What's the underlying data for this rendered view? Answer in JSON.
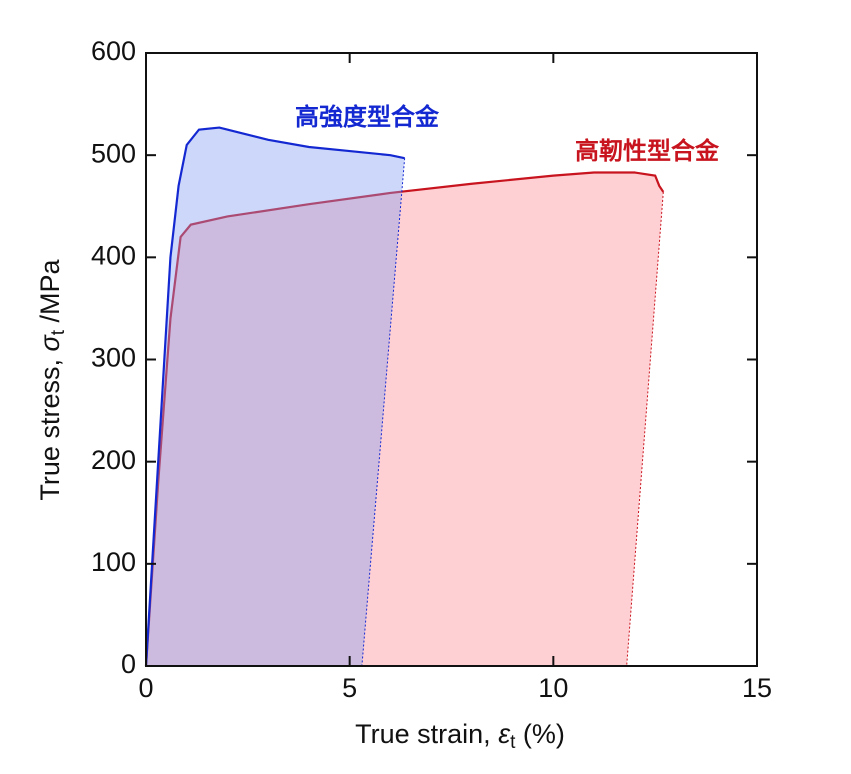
{
  "chart_data": {
    "type": "line",
    "xlabel": [
      "True strain, ",
      "ε",
      "t",
      " (%)"
    ],
    "ylabel": [
      "True stress, ",
      "σ",
      "t",
      " /MPa"
    ],
    "xlim": [
      0,
      15
    ],
    "xticks": [
      0,
      5,
      10,
      15
    ],
    "ylim": [
      0,
      600
    ],
    "yticks": [
      0,
      100,
      200,
      300,
      400,
      500,
      600
    ],
    "series": [
      {
        "name": "高靭性型合金",
        "color": "#c8141e",
        "fill": "#ff8a92",
        "x": [
          0,
          0.3,
          0.6,
          0.85,
          1.1,
          2,
          4,
          6,
          8,
          10,
          11,
          12,
          12.5,
          12.6,
          12.7,
          11.8
        ],
        "values": [
          0,
          180,
          340,
          420,
          432,
          440,
          452,
          463,
          472,
          480,
          483,
          483,
          480,
          470,
          464,
          0
        ]
      },
      {
        "name": "高強度型合金",
        "color": "#1428d2",
        "fill": "#7f9af0",
        "x": [
          0,
          0.3,
          0.6,
          0.8,
          1.0,
          1.3,
          1.8,
          2.3,
          3,
          4,
          5,
          6,
          6.35,
          5.3
        ],
        "values": [
          0,
          200,
          400,
          470,
          510,
          525,
          527,
          522,
          515,
          508,
          504,
          500,
          497,
          0
        ]
      }
    ]
  }
}
